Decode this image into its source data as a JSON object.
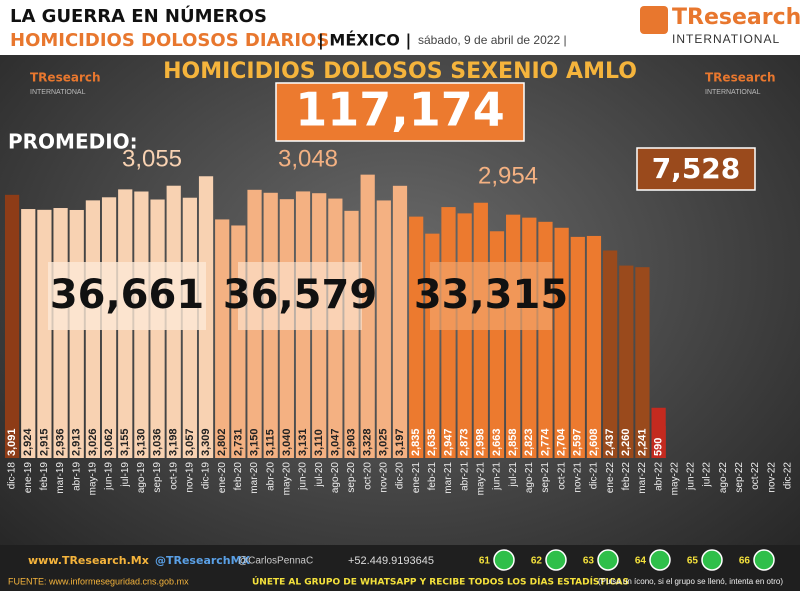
{
  "header": {
    "title": "LA GUERRA EN NÚMEROS",
    "subtitle": "HOMICIDIOS DOLOSOS DIARIOS",
    "country": "| MÉXICO |",
    "date": "sábado, 9 de abril de 2022 |",
    "brand": "TResearch",
    "brand_sub": "INTERNATIONAL"
  },
  "chart_data": {
    "type": "bar",
    "title": "HOMICIDIOS DOLOSOS SEXENIO AMLO",
    "total": "117,174",
    "average_label": "PROMEDIO:",
    "annotations": [
      {
        "text": "3,055",
        "role": "average"
      },
      {
        "text": "3,048",
        "role": "average"
      },
      {
        "text": "2,954",
        "role": "average"
      },
      {
        "text": "7,528",
        "role": "average"
      },
      {
        "text": "36,661",
        "role": "year-total"
      },
      {
        "text": "36,579",
        "role": "year-total"
      },
      {
        "text": "33,315",
        "role": "year-total"
      }
    ],
    "categories": [
      "dic-18",
      "ene-19",
      "feb-19",
      "mar-19",
      "abr-19",
      "may-19",
      "jun-19",
      "jul-19",
      "ago-19",
      "sep-19",
      "oct-19",
      "nov-19",
      "dic-19",
      "ene-20",
      "feb-20",
      "mar-20",
      "abr-20",
      "may-20",
      "jun-20",
      "jul-20",
      "ago-20",
      "sep-20",
      "oct-20",
      "nov-20",
      "dic-20",
      "ene-21",
      "feb-21",
      "mar-21",
      "abr-21",
      "may-21",
      "jun-21",
      "jul-21",
      "ago-21",
      "sep-21",
      "oct-21",
      "nov-21",
      "dic-21",
      "ene-22",
      "feb-22",
      "mar-22",
      "abr-22",
      "may-22",
      "jun-22",
      "jul-22",
      "ago-22",
      "sep-22",
      "oct-22",
      "nov-22",
      "dic-22"
    ],
    "values": [
      3091,
      2924,
      2915,
      2936,
      2913,
      3026,
      3062,
      3155,
      3130,
      3036,
      3198,
      3057,
      3309,
      2802,
      2731,
      3150,
      3115,
      3040,
      3131,
      3110,
      3047,
      2903,
      3328,
      3025,
      3197,
      2835,
      2635,
      2947,
      2873,
      2998,
      2663,
      2858,
      2823,
      2774,
      2704,
      2597,
      2608,
      2437,
      2260,
      2241,
      590,
      null,
      null,
      null,
      null,
      null,
      null,
      null,
      null
    ],
    "value_labels": [
      "3,091",
      "2,924",
      "2,915",
      "2,936",
      "2,913",
      "3,026",
      "3,062",
      "3,155",
      "3,130",
      "3,036",
      "3,198",
      "3,057",
      "3,309",
      "2,802",
      "2,731",
      "3,150",
      "3,115",
      "3,040",
      "3,131",
      "3,110",
      "3,047",
      "2,903",
      "3,328",
      "3,025",
      "3,197",
      "2,835",
      "2,635",
      "2,947",
      "2,873",
      "2,998",
      "2,663",
      "2,858",
      "2,823",
      "2,774",
      "2,704",
      "2,597",
      "2,608",
      "2,437",
      "2,260",
      "2,241",
      "590",
      null,
      null,
      null,
      null,
      null,
      null,
      null,
      null
    ],
    "colors": [
      "#8e3c17",
      "#f8d2b2",
      "#f8d2b2",
      "#f8d2b2",
      "#f8d2b2",
      "#f8d2b2",
      "#f8d2b2",
      "#f8d2b2",
      "#f8d2b2",
      "#f8d2b2",
      "#f8d2b2",
      "#f8d2b2",
      "#f8d2b2",
      "#f4b182",
      "#f4b182",
      "#f4b182",
      "#f4b182",
      "#f4b182",
      "#f4b182",
      "#f4b182",
      "#f4b182",
      "#f4b182",
      "#f4b182",
      "#f4b182",
      "#f4b182",
      "#ec7a2f",
      "#ec7a2f",
      "#ec7a2f",
      "#ec7a2f",
      "#ec7a2f",
      "#ec7a2f",
      "#ec7a2f",
      "#ec7a2f",
      "#ec7a2f",
      "#ec7a2f",
      "#ec7a2f",
      "#ec7a2f",
      "#9a4a1c",
      "#9a4a1c",
      "#9a4a1c",
      "#c42a1f",
      "#9a4a1c",
      "#9a4a1c",
      "#9a4a1c",
      "#9a4a1c",
      "#9a4a1c",
      "#9a4a1c",
      "#9a4a1c",
      "#9a4a1c"
    ],
    "ylim": [
      0,
      3500
    ]
  },
  "footer": {
    "web": "www.TResearch.Mx",
    "twitter": "@TResearchMX",
    "twitter2": "@CarlosPennaC",
    "phone": "+52.449.9193645",
    "groups": [
      "61",
      "62",
      "63",
      "64",
      "65",
      "66"
    ],
    "source": "FUENTE: www.informeseguridad.cns.gob.mx",
    "cta": "ÚNETE AL GRUPO DE WHATSAPP Y RECIBE TODOS LOS DÍAS ESTADÍSTICAS",
    "note": "(Pulsa un ícono, si el grupo se llenó, intenta en otro)"
  }
}
